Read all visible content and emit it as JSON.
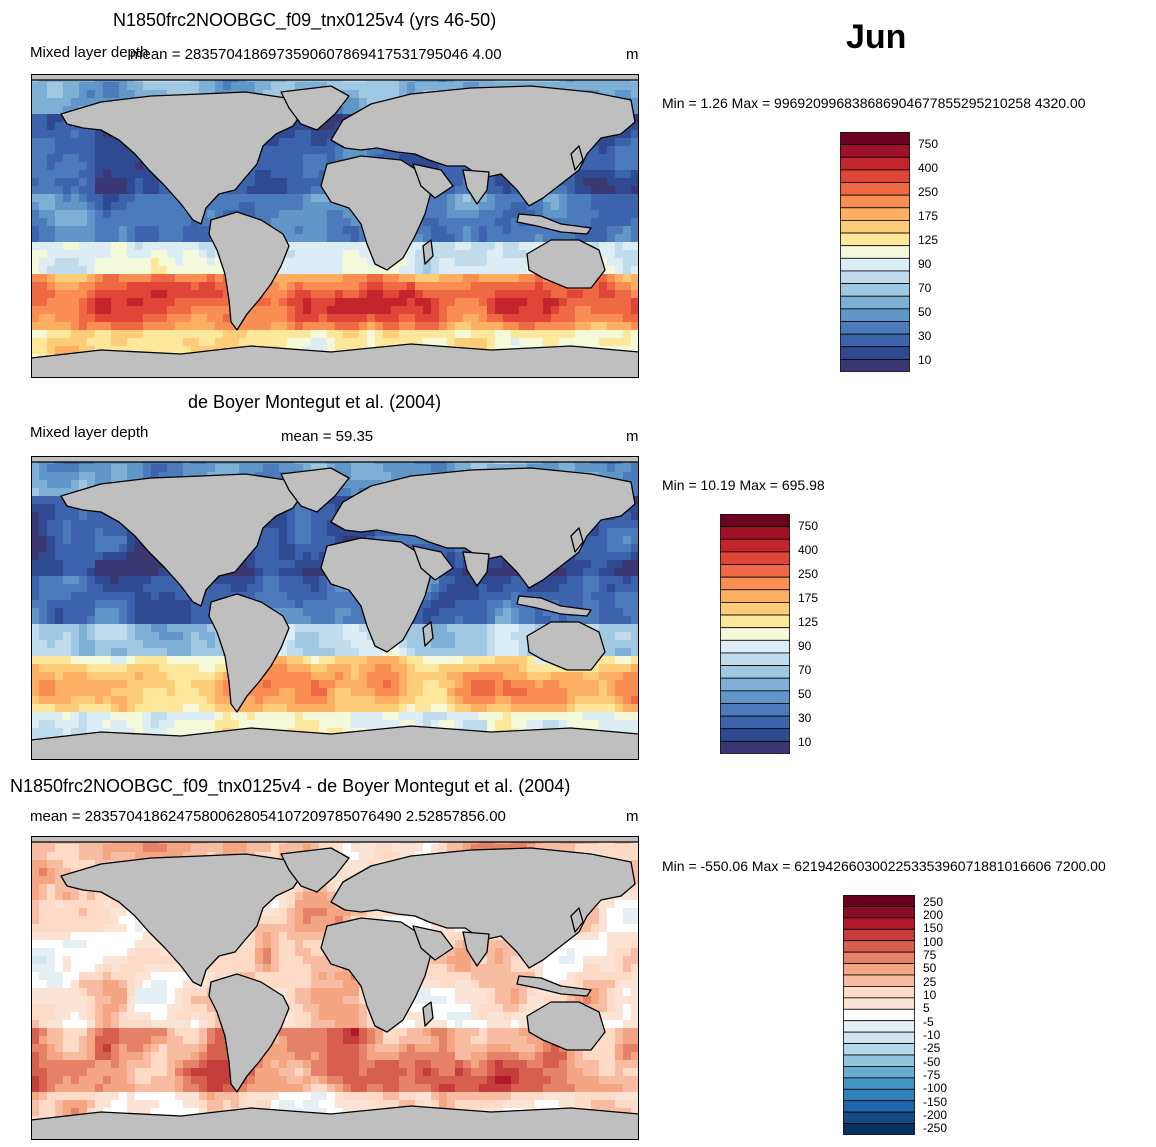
{
  "month": "Jun",
  "colors": {
    "land": "#bfbfbf",
    "border": "#000000",
    "mld_scale": [
      "#3b3772",
      "#2f4a91",
      "#3c63ac",
      "#4b7bbb",
      "#6196c8",
      "#7eb0d6",
      "#a0c8e2",
      "#bfdbec",
      "#dcedf5",
      "#f4f9d9",
      "#fde79b",
      "#fdcc78",
      "#fcae62",
      "#f98d52",
      "#ef6a44",
      "#df4637",
      "#c2252b",
      "#9e1126",
      "#6b0220"
    ],
    "diff_scale": [
      "#053061",
      "#134b87",
      "#2166ac",
      "#3480b9",
      "#4393c3",
      "#69acd1",
      "#92c5de",
      "#b5d7e8",
      "#d1e5f0",
      "#e6eff4",
      "#ffffff",
      "#fbe4d6",
      "#fddbc7",
      "#f8bca2",
      "#f4a582",
      "#e58267",
      "#d6604d",
      "#c43c3c",
      "#b2182b",
      "#8b0b24",
      "#67001f"
    ]
  },
  "panels": [
    {
      "title": "N1850frc2NOOBGC_f09_tnx0125v4 (yrs 46-50)",
      "left_label": "Mixed layer depth",
      "mean": "mean = 2835704186973590607869417531795046 4.00",
      "units": "m",
      "stats": "Min =   1.26 Max = 996920996838686904677855295210258 4320.00",
      "colorbar_labels": [
        "750",
        "400",
        "250",
        "175",
        "125",
        "90",
        "70",
        "50",
        "30",
        "10"
      ]
    },
    {
      "title": "de Boyer Montegut et al. (2004)",
      "left_label": "Mixed layer depth",
      "mean": "mean =  59.35",
      "units": "m",
      "stats": "Min =  10.19 Max = 695.98",
      "colorbar_labels": [
        "750",
        "400",
        "250",
        "175",
        "125",
        "90",
        "70",
        "50",
        "30",
        "10"
      ]
    },
    {
      "title": "N1850frc2NOOBGC_f09_tnx0125v4 - de Boyer Montegut et al. (2004)",
      "left_label": "",
      "mean": "mean = 28357041862475800628054107209785076490 2.52857856.00",
      "units": "m",
      "stats": "Min = -550.06 Max = 621942660300225335396071881016606 7200.00",
      "colorbar_labels": [
        "250",
        "200",
        "150",
        "100",
        "75",
        "50",
        "25",
        "10",
        "5",
        "-5",
        "-10",
        "-25",
        "-50",
        "-75",
        "-100",
        "-150",
        "-200",
        "-250"
      ]
    }
  ]
}
